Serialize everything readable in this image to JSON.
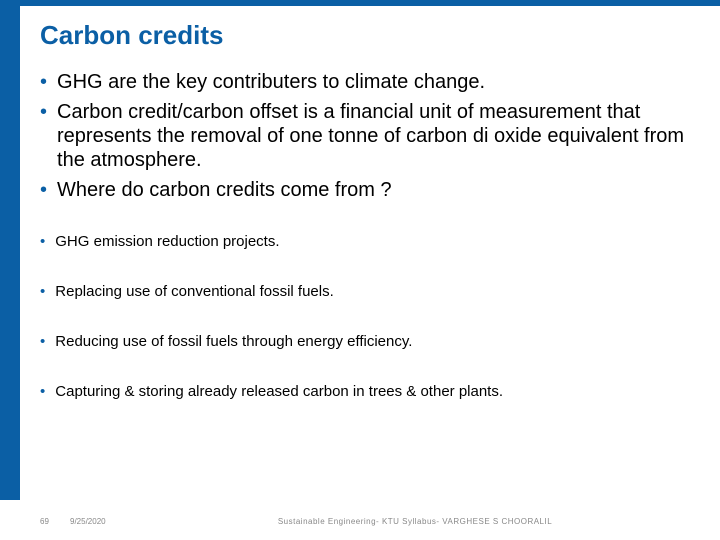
{
  "colors": {
    "accent": "#0b5fa5",
    "bullet": "#0b5fa5",
    "title": "#0b5fa5",
    "footer_text": "#888888"
  },
  "title": "Carbon credits",
  "bullets_large": [
    "GHG are the key contributers to climate change.",
    "Carbon credit/carbon offset is a financial unit of measurement that represents the removal of one tonne of carbon di oxide equivalent from the atmosphere.",
    "Where do carbon credits come from ?"
  ],
  "bullets_small": [
    "GHG emission reduction projects.",
    "Replacing use of conventional fossil fuels.",
    "Reducing use of fossil fuels through energy efficiency.",
    "Capturing & storing already released carbon in trees & other plants."
  ],
  "footer": {
    "page": "69",
    "date": "9/25/2020",
    "text": "Sustainable Engineering- KTU Syllabus- VARGHESE S CHOORALIL"
  }
}
